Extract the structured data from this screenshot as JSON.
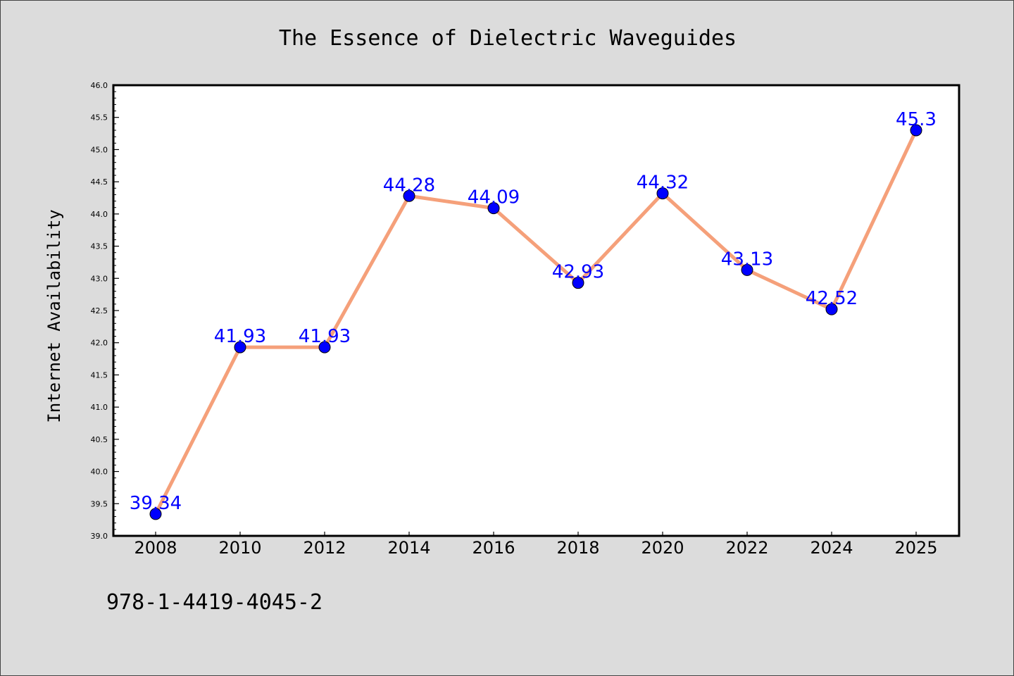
{
  "chart_data": {
    "type": "line",
    "title": "The Essence of Dielectric Waveguides",
    "xlabel": "",
    "ylabel": "Internet Availability",
    "categories": [
      "2008",
      "2010",
      "2012",
      "2014",
      "2016",
      "2018",
      "2020",
      "2022",
      "2024",
      "2025"
    ],
    "series": [
      {
        "values": [
          39.34,
          41.93,
          41.93,
          44.28,
          44.09,
          42.93,
          44.32,
          43.13,
          42.52,
          45.3
        ],
        "labels": [
          "39.34",
          "41.93",
          "41.93",
          "44.28",
          "44.09",
          "42.93",
          "44.32",
          "43.13",
          "42.52",
          "45.3"
        ],
        "line_color": "#f5a07a",
        "marker_color": "#0000ff"
      }
    ],
    "ylim": [
      39.0,
      46.0
    ],
    "yticks": [
      "39.0",
      "39.5",
      "40.0",
      "40.5",
      "41.0",
      "41.5",
      "42.0",
      "42.5",
      "43.0",
      "43.5",
      "44.0",
      "44.5",
      "45.0",
      "45.5",
      "46.0"
    ],
    "grid": false,
    "legend": "none",
    "label_color": "#0000ff"
  },
  "footer": {
    "isbn": "978-1-4419-4045-2"
  },
  "colors": {
    "figure_background": "#dcdcdc",
    "plot_background": "#ffffff"
  }
}
